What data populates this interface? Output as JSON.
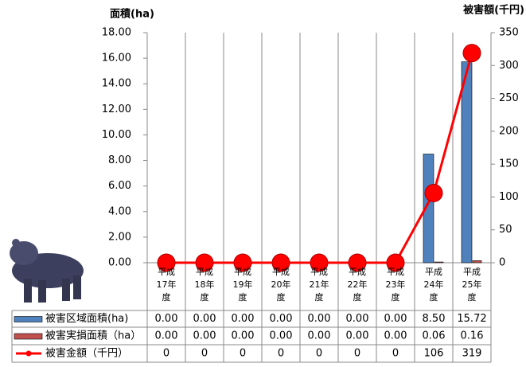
{
  "chart_data": {
    "type": "bar",
    "y_label": "面積(ha)",
    "y2_label": "被害額(千円)",
    "categories": [
      "平成17年度",
      "平成18年度",
      "平成19年度",
      "平成20年度",
      "平成21年度",
      "平成22年度",
      "平成23年度",
      "平成24年度",
      "平成25年度"
    ],
    "series": [
      {
        "name": "被害区域面積(ha)",
        "color": "#4f81bd",
        "values": [
          0,
          0,
          0,
          0,
          0,
          0,
          0,
          8.5,
          15.72
        ],
        "value_labels": [
          "0.00",
          "0.00",
          "0.00",
          "0.00",
          "0.00",
          "0.00",
          "0.00",
          "8.50",
          "15.72"
        ]
      },
      {
        "name": "被害実損面積（ha）",
        "color": "#c0504d",
        "values": [
          0,
          0,
          0,
          0,
          0,
          0,
          0,
          0.06,
          0.16
        ],
        "value_labels": [
          "0.00",
          "0.00",
          "0.00",
          "0.00",
          "0.00",
          "0.00",
          "0.00",
          "0.06",
          "0.16"
        ]
      },
      {
        "name": "被害金額（千円）",
        "color": "#ff0000",
        "type": "line",
        "axis": "y2",
        "values": [
          0,
          0,
          0,
          0,
          0,
          0,
          0,
          106,
          319
        ]
      }
    ],
    "ylim": [
      0,
      18
    ],
    "yticks": [
      {
        "value": 0,
        "label": "0.00"
      },
      {
        "value": 2,
        "label": "2.00"
      },
      {
        "value": 4,
        "label": "4.00"
      },
      {
        "value": 6,
        "label": "6.00"
      },
      {
        "value": 8,
        "label": "8.00"
      },
      {
        "value": 10,
        "label": "10.00"
      },
      {
        "value": 12,
        "label": "12.00"
      },
      {
        "value": 14,
        "label": "14.00"
      },
      {
        "value": 16,
        "label": "16.00"
      },
      {
        "value": 18,
        "label": "18.00"
      }
    ],
    "y2lim": [
      0,
      350
    ],
    "y2ticks": [
      0,
      50,
      100,
      150,
      200,
      250,
      300,
      350
    ]
  }
}
